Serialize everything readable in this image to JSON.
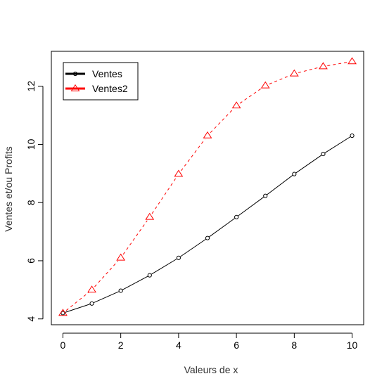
{
  "chart_data": {
    "type": "line",
    "xlabel": "Valeurs de x",
    "ylabel": "Ventes et/ou Profits",
    "xlim": [
      -0.4,
      10.4
    ],
    "ylim": [
      3.8,
      13.2
    ],
    "x_ticks": [
      "0",
      "2",
      "4",
      "6",
      "8",
      "10"
    ],
    "y_ticks": [
      "4",
      "6",
      "8",
      "10",
      "12"
    ],
    "grid": false,
    "legend_position": "top-left",
    "x": [
      0,
      1,
      2,
      3,
      4,
      5,
      6,
      7,
      8,
      9,
      10
    ],
    "series": [
      {
        "name": "Ventes",
        "color": "#000000",
        "line_style": "solid",
        "marker": "circle",
        "values": [
          4.2,
          4.53,
          4.97,
          5.5,
          6.1,
          6.78,
          7.5,
          8.23,
          8.98,
          9.67,
          10.3
        ]
      },
      {
        "name": "Ventes2",
        "color": "#ff0000",
        "line_style": "dashed",
        "marker": "triangle",
        "values": [
          4.2,
          5.0,
          6.1,
          7.5,
          8.98,
          10.3,
          11.33,
          12.02,
          12.43,
          12.68,
          12.85
        ]
      }
    ]
  }
}
